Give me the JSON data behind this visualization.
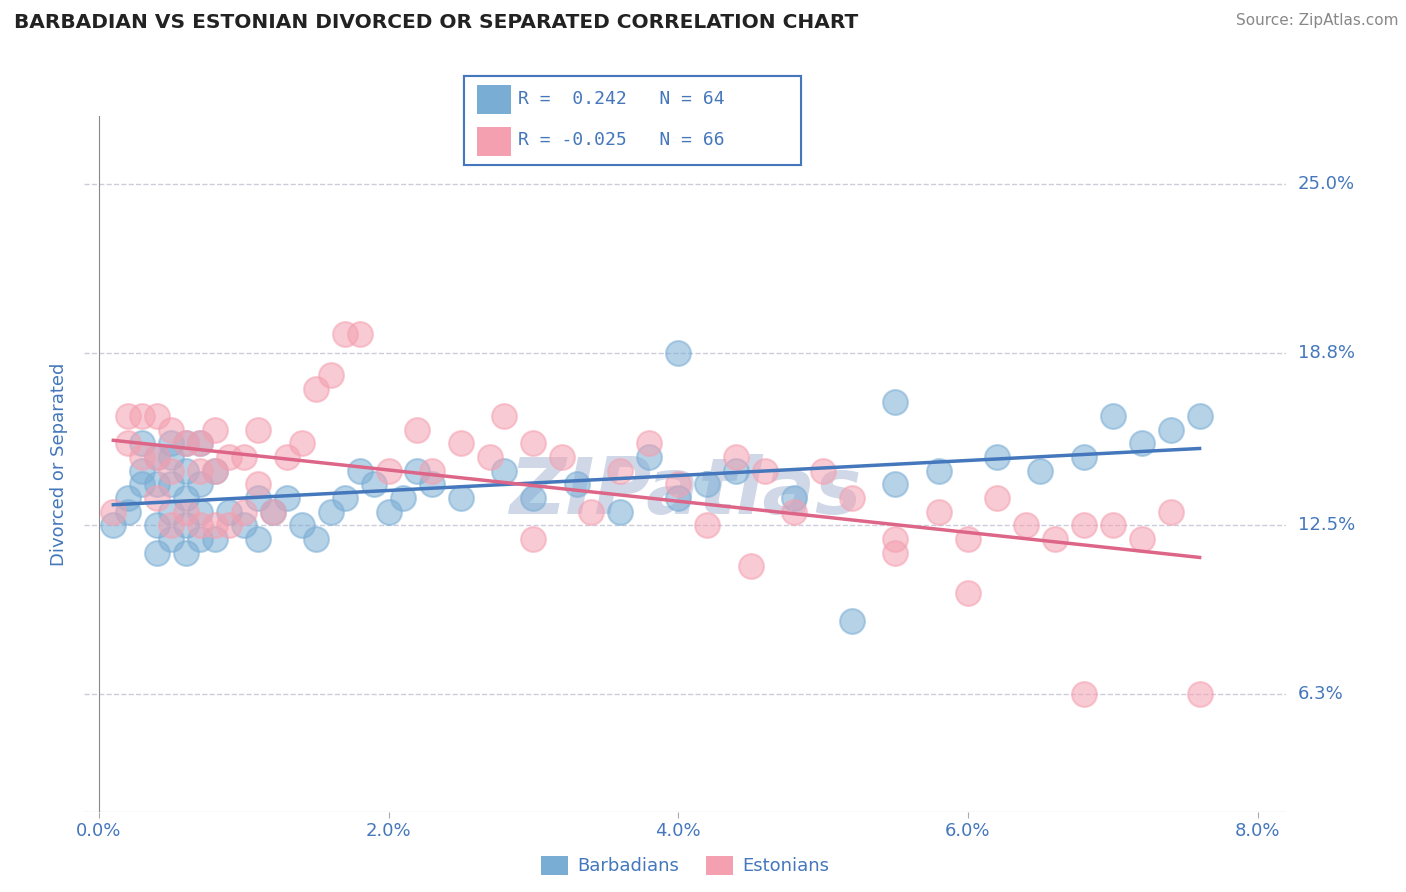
{
  "title": "BARBADIAN VS ESTONIAN DIVORCED OR SEPARATED CORRELATION CHART",
  "source": "Source: ZipAtlas.com",
  "ylabel": "Divorced or Separated",
  "xlim": [
    -0.001,
    0.082
  ],
  "ylim": [
    0.02,
    0.275
  ],
  "xticks": [
    0.0,
    0.02,
    0.04,
    0.06,
    0.08
  ],
  "xtick_labels": [
    "0.0%",
    "2.0%",
    "4.0%",
    "6.0%",
    "8.0%"
  ],
  "yticks": [
    0.063,
    0.125,
    0.188,
    0.25
  ],
  "ytick_labels": [
    "6.3%",
    "12.5%",
    "18.8%",
    "25.0%"
  ],
  "blue_R": 0.242,
  "blue_N": 64,
  "pink_R": -0.025,
  "pink_N": 66,
  "blue_color": "#7aadd4",
  "pink_color": "#f4a0b0",
  "blue_line_color": "#4477bb",
  "pink_line_color": "#dd6688",
  "background_color": "#FFFFFF",
  "grid_color": "#ccccdd",
  "title_color": "#222222",
  "axis_label_color": "#4477bb",
  "tick_color": "#4477bb",
  "legend_label_blue": "Barbadians",
  "legend_label_pink": "Estonians",
  "blue_x": [
    0.001,
    0.002,
    0.002,
    0.003,
    0.003,
    0.003,
    0.004,
    0.004,
    0.004,
    0.004,
    0.005,
    0.005,
    0.005,
    0.005,
    0.005,
    0.006,
    0.006,
    0.006,
    0.006,
    0.006,
    0.007,
    0.007,
    0.007,
    0.007,
    0.008,
    0.008,
    0.009,
    0.01,
    0.011,
    0.011,
    0.012,
    0.013,
    0.014,
    0.015,
    0.016,
    0.017,
    0.018,
    0.019,
    0.02,
    0.021,
    0.022,
    0.023,
    0.025,
    0.028,
    0.03,
    0.033,
    0.036,
    0.038,
    0.04,
    0.042,
    0.044,
    0.048,
    0.052,
    0.055,
    0.058,
    0.062,
    0.065,
    0.068,
    0.07,
    0.072,
    0.074,
    0.076,
    0.04,
    0.055
  ],
  "blue_y": [
    0.125,
    0.135,
    0.13,
    0.145,
    0.14,
    0.155,
    0.115,
    0.125,
    0.14,
    0.15,
    0.12,
    0.13,
    0.14,
    0.15,
    0.155,
    0.115,
    0.125,
    0.135,
    0.145,
    0.155,
    0.12,
    0.13,
    0.14,
    0.155,
    0.12,
    0.145,
    0.13,
    0.125,
    0.12,
    0.135,
    0.13,
    0.135,
    0.125,
    0.12,
    0.13,
    0.135,
    0.145,
    0.14,
    0.13,
    0.135,
    0.145,
    0.14,
    0.135,
    0.145,
    0.135,
    0.14,
    0.13,
    0.15,
    0.135,
    0.14,
    0.145,
    0.135,
    0.09,
    0.14,
    0.145,
    0.15,
    0.145,
    0.15,
    0.165,
    0.155,
    0.16,
    0.165,
    0.188,
    0.17
  ],
  "pink_x": [
    0.001,
    0.002,
    0.002,
    0.003,
    0.003,
    0.004,
    0.004,
    0.004,
    0.005,
    0.005,
    0.005,
    0.006,
    0.006,
    0.007,
    0.007,
    0.007,
    0.008,
    0.008,
    0.008,
    0.009,
    0.009,
    0.01,
    0.01,
    0.011,
    0.011,
    0.012,
    0.013,
    0.014,
    0.015,
    0.016,
    0.017,
    0.018,
    0.02,
    0.022,
    0.023,
    0.025,
    0.027,
    0.028,
    0.03,
    0.032,
    0.034,
    0.036,
    0.038,
    0.04,
    0.042,
    0.044,
    0.046,
    0.048,
    0.05,
    0.052,
    0.055,
    0.058,
    0.06,
    0.062,
    0.064,
    0.066,
    0.068,
    0.07,
    0.072,
    0.074,
    0.03,
    0.045,
    0.055,
    0.06,
    0.068,
    0.076
  ],
  "pink_y": [
    0.13,
    0.165,
    0.155,
    0.15,
    0.165,
    0.135,
    0.15,
    0.165,
    0.125,
    0.145,
    0.16,
    0.13,
    0.155,
    0.125,
    0.145,
    0.155,
    0.125,
    0.145,
    0.16,
    0.125,
    0.15,
    0.13,
    0.15,
    0.14,
    0.16,
    0.13,
    0.15,
    0.155,
    0.175,
    0.18,
    0.195,
    0.195,
    0.145,
    0.16,
    0.145,
    0.155,
    0.15,
    0.165,
    0.155,
    0.15,
    0.13,
    0.145,
    0.155,
    0.14,
    0.125,
    0.15,
    0.145,
    0.13,
    0.145,
    0.135,
    0.12,
    0.13,
    0.12,
    0.135,
    0.125,
    0.12,
    0.125,
    0.125,
    0.12,
    0.13,
    0.12,
    0.11,
    0.115,
    0.1,
    0.063,
    0.063
  ],
  "watermark_text": "ZIPatlas",
  "watermark_color": "#d0d8e8"
}
